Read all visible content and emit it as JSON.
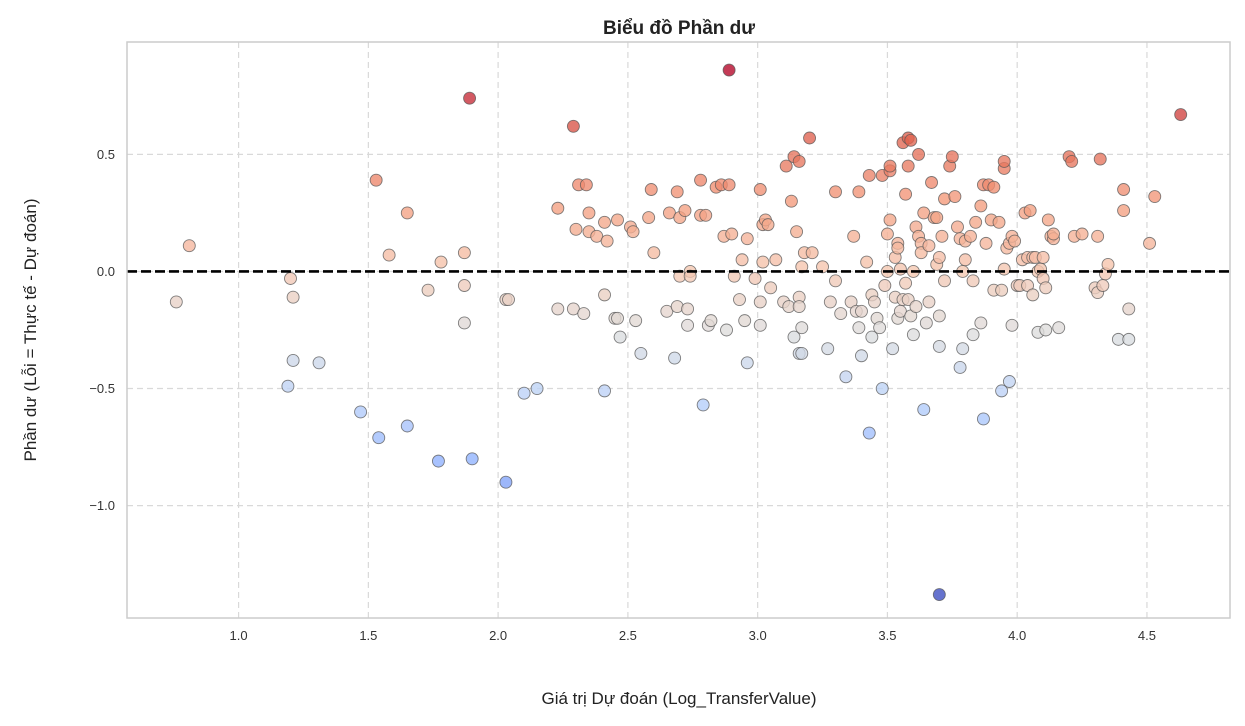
{
  "chart_data": {
    "type": "scatter",
    "title": "Biểu đồ Phần dư",
    "xlabel": "Giá trị Dự đoán (Log_TransferValue)",
    "ylabel": "Phần dư (Lỗi = Thực tế - Dự đoán)",
    "xlim": [
      0.57,
      4.82
    ],
    "ylim": [
      -1.48,
      0.98
    ],
    "xticks": [
      1.0,
      1.5,
      2.0,
      2.5,
      3.0,
      3.5,
      4.0,
      4.5
    ],
    "xtick_labels": [
      "1.0",
      "1.5",
      "2.0",
      "2.5",
      "3.0",
      "3.5",
      "4.0",
      "4.5"
    ],
    "yticks": [
      -1.0,
      -0.5,
      0.0,
      0.5
    ],
    "ytick_labels": [
      "−1.0",
      "−0.5",
      "0.0",
      "0.5"
    ],
    "grid": true,
    "reference_line": {
      "y": 0,
      "style": "dashed",
      "color": "#000000"
    },
    "colormap": "coolwarm",
    "color_range": [
      -1.38,
      0.86
    ],
    "points": [
      [
        0.76,
        -0.13
      ],
      [
        0.81,
        0.11
      ],
      [
        1.19,
        -0.49
      ],
      [
        1.2,
        -0.03
      ],
      [
        1.21,
        -0.38
      ],
      [
        1.21,
        -0.11
      ],
      [
        1.31,
        -0.39
      ],
      [
        1.47,
        -0.6
      ],
      [
        1.53,
        0.39
      ],
      [
        1.54,
        -0.71
      ],
      [
        1.58,
        0.07
      ],
      [
        1.65,
        -0.66
      ],
      [
        1.65,
        0.25
      ],
      [
        1.73,
        -0.08
      ],
      [
        1.77,
        -0.81
      ],
      [
        1.78,
        0.04
      ],
      [
        1.87,
        -0.22
      ],
      [
        1.87,
        0.08
      ],
      [
        1.87,
        -0.06
      ],
      [
        1.89,
        0.74
      ],
      [
        1.9,
        -0.8
      ],
      [
        2.03,
        -0.9
      ],
      [
        2.03,
        -0.12
      ],
      [
        2.04,
        -0.12
      ],
      [
        2.1,
        -0.52
      ],
      [
        2.15,
        -0.5
      ],
      [
        2.23,
        0.27
      ],
      [
        2.23,
        -0.16
      ],
      [
        2.29,
        0.62
      ],
      [
        2.29,
        -0.16
      ],
      [
        2.3,
        0.18
      ],
      [
        2.31,
        0.37
      ],
      [
        2.33,
        -0.18
      ],
      [
        2.34,
        0.37
      ],
      [
        2.35,
        0.25
      ],
      [
        2.35,
        0.17
      ],
      [
        2.38,
        0.15
      ],
      [
        2.41,
        -0.51
      ],
      [
        2.41,
        0.21
      ],
      [
        2.41,
        -0.1
      ],
      [
        2.42,
        0.13
      ],
      [
        2.45,
        -0.2
      ],
      [
        2.46,
        -0.2
      ],
      [
        2.46,
        0.22
      ],
      [
        2.47,
        -0.28
      ],
      [
        2.51,
        0.19
      ],
      [
        2.52,
        0.17
      ],
      [
        2.53,
        -0.21
      ],
      [
        2.55,
        -0.35
      ],
      [
        2.58,
        0.23
      ],
      [
        2.59,
        0.35
      ],
      [
        2.6,
        0.08
      ],
      [
        2.65,
        -0.17
      ],
      [
        2.66,
        0.25
      ],
      [
        2.68,
        -0.37
      ],
      [
        2.69,
        0.34
      ],
      [
        2.69,
        -0.15
      ],
      [
        2.7,
        -0.02
      ],
      [
        2.7,
        0.23
      ],
      [
        2.72,
        0.26
      ],
      [
        2.73,
        -0.16
      ],
      [
        2.73,
        -0.23
      ],
      [
        2.74,
        0.0
      ],
      [
        2.74,
        -0.02
      ],
      [
        2.78,
        0.39
      ],
      [
        2.78,
        0.24
      ],
      [
        2.79,
        -0.57
      ],
      [
        2.8,
        0.24
      ],
      [
        2.81,
        -0.23
      ],
      [
        2.82,
        -0.21
      ],
      [
        2.84,
        0.36
      ],
      [
        2.86,
        0.37
      ],
      [
        2.87,
        0.15
      ],
      [
        2.88,
        -0.25
      ],
      [
        2.89,
        0.37
      ],
      [
        2.89,
        0.86
      ],
      [
        2.9,
        0.16
      ],
      [
        2.91,
        -0.02
      ],
      [
        2.93,
        -0.12
      ],
      [
        2.94,
        0.05
      ],
      [
        2.95,
        -0.21
      ],
      [
        2.96,
        -0.39
      ],
      [
        2.96,
        0.14
      ],
      [
        2.99,
        -0.03
      ],
      [
        3.01,
        0.35
      ],
      [
        3.01,
        -0.13
      ],
      [
        3.01,
        -0.23
      ],
      [
        3.02,
        0.2
      ],
      [
        3.02,
        0.04
      ],
      [
        3.03,
        0.22
      ],
      [
        3.04,
        0.2
      ],
      [
        3.05,
        -0.07
      ],
      [
        3.07,
        0.05
      ],
      [
        3.1,
        -0.13
      ],
      [
        3.11,
        0.45
      ],
      [
        3.12,
        -0.15
      ],
      [
        3.13,
        0.3
      ],
      [
        3.14,
        -0.28
      ],
      [
        3.14,
        0.49
      ],
      [
        3.15,
        0.17
      ],
      [
        3.16,
        -0.35
      ],
      [
        3.16,
        -0.11
      ],
      [
        3.16,
        0.47
      ],
      [
        3.16,
        -0.15
      ],
      [
        3.17,
        0.02
      ],
      [
        3.17,
        -0.24
      ],
      [
        3.17,
        -0.35
      ],
      [
        3.18,
        0.08
      ],
      [
        3.2,
        0.57
      ],
      [
        3.21,
        0.08
      ],
      [
        3.25,
        0.02
      ],
      [
        3.27,
        -0.33
      ],
      [
        3.28,
        -0.13
      ],
      [
        3.3,
        0.34
      ],
      [
        3.3,
        -0.04
      ],
      [
        3.32,
        -0.18
      ],
      [
        3.34,
        -0.45
      ],
      [
        3.36,
        -0.13
      ],
      [
        3.37,
        0.15
      ],
      [
        3.38,
        -0.17
      ],
      [
        3.39,
        0.34
      ],
      [
        3.39,
        -0.24
      ],
      [
        3.4,
        -0.36
      ],
      [
        3.4,
        -0.17
      ],
      [
        3.42,
        0.04
      ],
      [
        3.43,
        -0.69
      ],
      [
        3.43,
        0.41
      ],
      [
        3.44,
        -0.1
      ],
      [
        3.44,
        -0.28
      ],
      [
        3.45,
        -0.13
      ],
      [
        3.46,
        -0.2
      ],
      [
        3.47,
        -0.24
      ],
      [
        3.48,
        -0.5
      ],
      [
        3.48,
        0.41
      ],
      [
        3.49,
        -0.06
      ],
      [
        3.5,
        0.16
      ],
      [
        3.5,
        0.0
      ],
      [
        3.51,
        0.43
      ],
      [
        3.51,
        0.45
      ],
      [
        3.51,
        0.22
      ],
      [
        3.52,
        -0.33
      ],
      [
        3.53,
        0.06
      ],
      [
        3.53,
        -0.11
      ],
      [
        3.54,
        0.12
      ],
      [
        3.54,
        0.1
      ],
      [
        3.54,
        -0.2
      ],
      [
        3.55,
        -0.17
      ],
      [
        3.55,
        0.01
      ],
      [
        3.56,
        0.55
      ],
      [
        3.56,
        -0.12
      ],
      [
        3.57,
        -0.05
      ],
      [
        3.57,
        0.33
      ],
      [
        3.58,
        0.57
      ],
      [
        3.58,
        0.45
      ],
      [
        3.58,
        -0.12
      ],
      [
        3.59,
        -0.19
      ],
      [
        3.59,
        0.56
      ],
      [
        3.6,
        -0.27
      ],
      [
        3.6,
        0.0
      ],
      [
        3.61,
        -0.15
      ],
      [
        3.61,
        0.19
      ],
      [
        3.62,
        0.5
      ],
      [
        3.62,
        0.15
      ],
      [
        3.63,
        0.12
      ],
      [
        3.63,
        0.08
      ],
      [
        3.64,
        0.25
      ],
      [
        3.64,
        -0.59
      ],
      [
        3.65,
        -0.22
      ],
      [
        3.66,
        0.11
      ],
      [
        3.66,
        -0.13
      ],
      [
        3.67,
        0.38
      ],
      [
        3.68,
        0.23
      ],
      [
        3.69,
        0.23
      ],
      [
        3.69,
        0.03
      ],
      [
        3.7,
        -0.32
      ],
      [
        3.7,
        0.06
      ],
      [
        3.7,
        -0.19
      ],
      [
        3.7,
        -1.38
      ],
      [
        3.71,
        0.15
      ],
      [
        3.72,
        0.31
      ],
      [
        3.72,
        -0.04
      ],
      [
        3.74,
        0.45
      ],
      [
        3.75,
        0.49
      ],
      [
        3.76,
        0.32
      ],
      [
        3.77,
        0.19
      ],
      [
        3.78,
        0.14
      ],
      [
        3.78,
        -0.41
      ],
      [
        3.79,
        -0.0
      ],
      [
        3.79,
        -0.33
      ],
      [
        3.8,
        0.13
      ],
      [
        3.8,
        0.05
      ],
      [
        3.82,
        0.15
      ],
      [
        3.83,
        -0.04
      ],
      [
        3.83,
        -0.27
      ],
      [
        3.84,
        0.21
      ],
      [
        3.86,
        -0.22
      ],
      [
        3.86,
        0.28
      ],
      [
        3.87,
        -0.63
      ],
      [
        3.87,
        0.37
      ],
      [
        3.88,
        0.12
      ],
      [
        3.89,
        0.37
      ],
      [
        3.9,
        0.22
      ],
      [
        3.91,
        -0.08
      ],
      [
        3.91,
        0.36
      ],
      [
        3.93,
        0.21
      ],
      [
        3.94,
        -0.51
      ],
      [
        3.94,
        -0.08
      ],
      [
        3.95,
        0.44
      ],
      [
        3.95,
        0.47
      ],
      [
        3.95,
        0.01
      ],
      [
        3.96,
        0.1
      ],
      [
        3.97,
        0.12
      ],
      [
        3.97,
        -0.47
      ],
      [
        3.98,
        -0.23
      ],
      [
        3.98,
        0.15
      ],
      [
        3.99,
        0.13
      ],
      [
        4.0,
        -0.06
      ],
      [
        4.01,
        -0.06
      ],
      [
        4.02,
        0.05
      ],
      [
        4.03,
        0.25
      ],
      [
        4.04,
        0.06
      ],
      [
        4.04,
        -0.06
      ],
      [
        4.05,
        0.26
      ],
      [
        4.06,
        -0.1
      ],
      [
        4.06,
        0.06
      ],
      [
        4.07,
        0.06
      ],
      [
        4.08,
        0.0
      ],
      [
        4.08,
        -0.26
      ],
      [
        4.09,
        0.01
      ],
      [
        4.1,
        -0.03
      ],
      [
        4.1,
        0.06
      ],
      [
        4.11,
        -0.25
      ],
      [
        4.11,
        -0.07
      ],
      [
        4.12,
        0.22
      ],
      [
        4.13,
        0.15
      ],
      [
        4.14,
        0.14
      ],
      [
        4.14,
        0.16
      ],
      [
        4.16,
        -0.24
      ],
      [
        4.2,
        0.49
      ],
      [
        4.21,
        0.47
      ],
      [
        4.22,
        0.15
      ],
      [
        4.25,
        0.16
      ],
      [
        4.3,
        -0.07
      ],
      [
        4.31,
        -0.09
      ],
      [
        4.31,
        0.15
      ],
      [
        4.32,
        0.48
      ],
      [
        4.33,
        -0.06
      ],
      [
        4.34,
        -0.01
      ],
      [
        4.35,
        0.03
      ],
      [
        4.39,
        -0.29
      ],
      [
        4.41,
        0.26
      ],
      [
        4.41,
        0.35
      ],
      [
        4.43,
        -0.16
      ],
      [
        4.43,
        -0.29
      ],
      [
        4.51,
        0.12
      ],
      [
        4.53,
        0.32
      ],
      [
        4.63,
        0.67
      ]
    ]
  }
}
